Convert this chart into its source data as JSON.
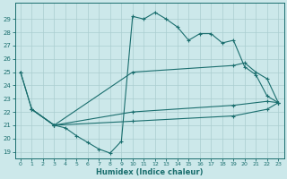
{
  "bg_color": "#cce8ea",
  "grid_color": "#aacdd0",
  "line_color": "#1a6e6e",
  "xlabel": "Humidex (Indice chaleur)",
  "xlim": [
    -0.5,
    23.5
  ],
  "ylim": [
    18.5,
    30.2
  ],
  "xticks": [
    0,
    1,
    2,
    3,
    4,
    5,
    6,
    7,
    8,
    9,
    10,
    11,
    12,
    13,
    14,
    15,
    16,
    17,
    18,
    19,
    20,
    21,
    22,
    23
  ],
  "yticks": [
    19,
    20,
    21,
    22,
    23,
    24,
    25,
    26,
    27,
    28,
    29
  ],
  "curve1_x": [
    0,
    1,
    3,
    4,
    5,
    6,
    7,
    8,
    9,
    10,
    11,
    12,
    13,
    14,
    15,
    16,
    17,
    18,
    19,
    20,
    21,
    22,
    23
  ],
  "curve1_y": [
    25,
    22.2,
    21.0,
    20.8,
    20.2,
    19.7,
    19.2,
    18.9,
    19.8,
    29.2,
    29.0,
    29.5,
    29.0,
    28.4,
    27.4,
    27.9,
    27.9,
    27.2,
    27.4,
    25.4,
    24.8,
    23.2,
    22.7
  ],
  "curve2_x": [
    0,
    1,
    3,
    10,
    19,
    20,
    21,
    22,
    23
  ],
  "curve2_y": [
    25,
    22.2,
    21.0,
    25.0,
    25.5,
    25.7,
    25.0,
    24.5,
    22.7
  ],
  "curve3_x": [
    1,
    3,
    10,
    19,
    22,
    23
  ],
  "curve3_y": [
    22.2,
    21.0,
    22.0,
    22.5,
    22.8,
    22.7
  ],
  "curve4_x": [
    1,
    3,
    10,
    19,
    22,
    23
  ],
  "curve4_y": [
    22.2,
    21.0,
    21.3,
    21.7,
    22.2,
    22.7
  ]
}
